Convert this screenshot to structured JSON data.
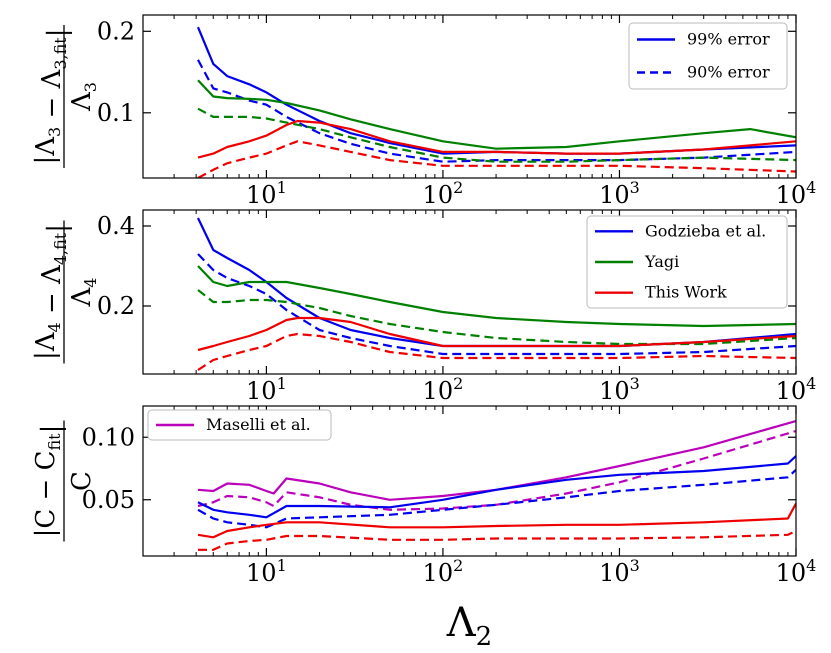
{
  "chart_data": [
    {
      "type": "line",
      "panel": "top",
      "ylabel": "|Λ3 − Λ3,fit| / Λ3",
      "xlabel": "",
      "xscale": "log",
      "xlim": [
        2,
        10000
      ],
      "ylim": [
        0.02,
        0.22
      ],
      "xticks": [
        10,
        100,
        1000,
        10000
      ],
      "xtick_labels": [
        "10^1",
        "10^2",
        "10^3",
        "10^4"
      ],
      "yticks": [
        0.1,
        0.2
      ],
      "ytick_labels": [
        "0.1",
        "0.2"
      ],
      "legend": {
        "placement": "top-right",
        "entries": [
          {
            "label": "99% error",
            "style": "solid",
            "color": "#0000ee"
          },
          {
            "label": "90% error",
            "style": "dashed",
            "color": "#0000ee"
          }
        ]
      },
      "series": [
        {
          "color": "#0000ee",
          "style": "solid",
          "x": [
            4.1,
            5,
            6,
            8,
            10,
            13,
            20,
            30,
            50,
            100,
            200,
            500,
            1000,
            3000,
            10000
          ],
          "y": [
            0.205,
            0.16,
            0.145,
            0.135,
            0.125,
            0.11,
            0.09,
            0.075,
            0.063,
            0.05,
            0.052,
            0.05,
            0.05,
            0.055,
            0.06
          ]
        },
        {
          "color": "#0000ee",
          "style": "dashed",
          "x": [
            4.1,
            5,
            6,
            8,
            10,
            13,
            20,
            30,
            50,
            100,
            200,
            500,
            1000,
            3000,
            10000
          ],
          "y": [
            0.165,
            0.13,
            0.125,
            0.115,
            0.11,
            0.095,
            0.075,
            0.062,
            0.05,
            0.04,
            0.042,
            0.042,
            0.042,
            0.045,
            0.052
          ]
        },
        {
          "color": "#008000",
          "style": "solid",
          "x": [
            4.1,
            5,
            6,
            8,
            10,
            13,
            20,
            30,
            50,
            100,
            200,
            500,
            1000,
            3000,
            5500,
            10000
          ],
          "y": [
            0.14,
            0.12,
            0.118,
            0.117,
            0.116,
            0.112,
            0.103,
            0.092,
            0.08,
            0.065,
            0.056,
            0.058,
            0.065,
            0.075,
            0.08,
            0.07
          ]
        },
        {
          "color": "#008000",
          "style": "dashed",
          "x": [
            4.1,
            5,
            6,
            8,
            10,
            13,
            20,
            30,
            50,
            100,
            200,
            500,
            1000,
            3000,
            10000
          ],
          "y": [
            0.105,
            0.095,
            0.095,
            0.095,
            0.093,
            0.088,
            0.08,
            0.07,
            0.058,
            0.045,
            0.04,
            0.04,
            0.042,
            0.045,
            0.042
          ]
        },
        {
          "color": "#ee0000",
          "style": "solid",
          "x": [
            4.1,
            5,
            6,
            8,
            10,
            13,
            15,
            20,
            30,
            50,
            100,
            200,
            500,
            1000,
            3000,
            10000
          ],
          "y": [
            0.045,
            0.05,
            0.058,
            0.065,
            0.072,
            0.085,
            0.09,
            0.088,
            0.08,
            0.065,
            0.052,
            0.052,
            0.05,
            0.05,
            0.055,
            0.065
          ]
        },
        {
          "color": "#ee0000",
          "style": "dashed",
          "x": [
            4.1,
            5,
            6,
            8,
            10,
            13,
            15,
            20,
            30,
            50,
            100,
            200,
            500,
            1000,
            3000,
            10000
          ],
          "y": [
            0.02,
            0.03,
            0.038,
            0.045,
            0.05,
            0.06,
            0.065,
            0.06,
            0.052,
            0.042,
            0.035,
            0.035,
            0.035,
            0.035,
            0.032,
            0.028
          ]
        }
      ]
    },
    {
      "type": "line",
      "panel": "middle",
      "ylabel": "|Λ4 − Λ4,fit| / Λ4",
      "xlabel": "",
      "xscale": "log",
      "xlim": [
        2,
        10000
      ],
      "ylim": [
        0.03,
        0.44
      ],
      "xticks": [
        10,
        100,
        1000,
        10000
      ],
      "xtick_labels": [
        "10^1",
        "10^2",
        "10^3",
        "10^4"
      ],
      "yticks": [
        0.2,
        0.4
      ],
      "ytick_labels": [
        "0.2",
        "0.4"
      ],
      "legend": {
        "placement": "top-right",
        "entries": [
          {
            "label": "Godzieba et al.",
            "style": "solid",
            "color": "#0000ee"
          },
          {
            "label": "Yagi",
            "style": "solid",
            "color": "#008000"
          },
          {
            "label": "This Work",
            "style": "solid",
            "color": "#ee0000"
          }
        ]
      },
      "series": [
        {
          "color": "#0000ee",
          "style": "solid",
          "x": [
            4.1,
            5,
            6,
            8,
            10,
            13,
            20,
            30,
            50,
            100,
            200,
            500,
            1000,
            3000,
            10000
          ],
          "y": [
            0.42,
            0.34,
            0.32,
            0.29,
            0.26,
            0.22,
            0.17,
            0.14,
            0.12,
            0.1,
            0.1,
            0.1,
            0.1,
            0.11,
            0.13
          ]
        },
        {
          "color": "#0000ee",
          "style": "dashed",
          "x": [
            4.1,
            5,
            6,
            8,
            10,
            13,
            20,
            30,
            50,
            100,
            200,
            500,
            1000,
            3000,
            10000
          ],
          "y": [
            0.33,
            0.29,
            0.27,
            0.25,
            0.23,
            0.19,
            0.14,
            0.12,
            0.1,
            0.08,
            0.08,
            0.08,
            0.08,
            0.085,
            0.1
          ]
        },
        {
          "color": "#008000",
          "style": "solid",
          "x": [
            4.1,
            5,
            6,
            8,
            10,
            13,
            20,
            30,
            50,
            100,
            200,
            500,
            1000,
            3000,
            10000
          ],
          "y": [
            0.3,
            0.26,
            0.25,
            0.26,
            0.26,
            0.26,
            0.245,
            0.23,
            0.21,
            0.185,
            0.17,
            0.16,
            0.155,
            0.15,
            0.155
          ]
        },
        {
          "color": "#008000",
          "style": "dashed",
          "x": [
            4.1,
            5,
            6,
            8,
            10,
            13,
            20,
            30,
            50,
            100,
            200,
            500,
            1000,
            3000,
            10000
          ],
          "y": [
            0.24,
            0.21,
            0.21,
            0.215,
            0.215,
            0.21,
            0.195,
            0.175,
            0.155,
            0.135,
            0.12,
            0.11,
            0.105,
            0.105,
            0.12
          ]
        },
        {
          "color": "#ee0000",
          "style": "solid",
          "x": [
            4.1,
            5,
            6,
            8,
            10,
            13,
            15,
            20,
            30,
            50,
            100,
            200,
            500,
            1000,
            3000,
            10000
          ],
          "y": [
            0.09,
            0.1,
            0.11,
            0.125,
            0.14,
            0.165,
            0.17,
            0.17,
            0.16,
            0.13,
            0.1,
            0.1,
            0.1,
            0.1,
            0.11,
            0.125
          ]
        },
        {
          "color": "#ee0000",
          "style": "dashed",
          "x": [
            4.1,
            5,
            6,
            8,
            10,
            13,
            15,
            20,
            30,
            50,
            100,
            200,
            500,
            1000,
            3000,
            10000
          ],
          "y": [
            0.04,
            0.065,
            0.075,
            0.09,
            0.1,
            0.125,
            0.13,
            0.125,
            0.11,
            0.085,
            0.07,
            0.07,
            0.07,
            0.07,
            0.075,
            0.07
          ]
        }
      ]
    },
    {
      "type": "line",
      "panel": "bottom",
      "ylabel": "|C − C_fit| / C",
      "xlabel": "Λ2",
      "xscale": "log",
      "xlim": [
        2,
        10000
      ],
      "ylim": [
        0.005,
        0.125
      ],
      "xticks": [
        10,
        100,
        1000,
        10000
      ],
      "xtick_labels": [
        "10^1",
        "10^2",
        "10^3",
        "10^4"
      ],
      "yticks": [
        0.05,
        0.1
      ],
      "ytick_labels": [
        "0.05",
        "0.10"
      ],
      "legend": {
        "placement": "top-left",
        "entries": [
          {
            "label": "Maselli et al.",
            "style": "solid",
            "color": "#bb00bb"
          }
        ]
      },
      "series": [
        {
          "color": "#bb00bb",
          "style": "solid",
          "x": [
            4.1,
            5,
            6,
            8,
            10,
            11,
            13,
            20,
            30,
            50,
            100,
            200,
            500,
            1000,
            3000,
            10000
          ],
          "y": [
            0.058,
            0.057,
            0.063,
            0.062,
            0.057,
            0.055,
            0.067,
            0.063,
            0.056,
            0.05,
            0.053,
            0.058,
            0.068,
            0.077,
            0.092,
            0.113
          ]
        },
        {
          "color": "#bb00bb",
          "style": "dashed",
          "x": [
            4.1,
            5,
            6,
            8,
            10,
            11,
            13,
            20,
            30,
            50,
            100,
            200,
            500,
            1000,
            3000,
            10000
          ],
          "y": [
            0.045,
            0.048,
            0.053,
            0.052,
            0.048,
            0.045,
            0.056,
            0.052,
            0.046,
            0.042,
            0.043,
            0.046,
            0.055,
            0.064,
            0.083,
            0.105
          ]
        },
        {
          "color": "#0000ee",
          "style": "solid",
          "x": [
            4.1,
            5,
            6,
            8,
            10,
            13,
            20,
            50,
            100,
            200,
            500,
            1000,
            3000,
            9000,
            10000
          ],
          "y": [
            0.048,
            0.042,
            0.04,
            0.038,
            0.036,
            0.045,
            0.045,
            0.044,
            0.05,
            0.058,
            0.066,
            0.07,
            0.073,
            0.079,
            0.085
          ]
        },
        {
          "color": "#0000ee",
          "style": "dashed",
          "x": [
            4.1,
            5,
            6,
            8,
            10,
            13,
            20,
            50,
            100,
            200,
            500,
            1000,
            3000,
            9000,
            10000
          ],
          "y": [
            0.042,
            0.035,
            0.032,
            0.03,
            0.028,
            0.035,
            0.036,
            0.038,
            0.042,
            0.046,
            0.052,
            0.057,
            0.062,
            0.068,
            0.074
          ]
        },
        {
          "color": "#ee0000",
          "style": "solid",
          "x": [
            4.1,
            5,
            6,
            8,
            10,
            13,
            20,
            50,
            100,
            200,
            500,
            1000,
            3000,
            9000,
            10000
          ],
          "y": [
            0.022,
            0.02,
            0.025,
            0.028,
            0.03,
            0.032,
            0.032,
            0.028,
            0.028,
            0.029,
            0.03,
            0.03,
            0.032,
            0.035,
            0.047
          ]
        },
        {
          "color": "#ee0000",
          "style": "dashed",
          "x": [
            4.1,
            5,
            6,
            8,
            10,
            13,
            20,
            50,
            100,
            200,
            500,
            1000,
            3000,
            9000,
            10000
          ],
          "y": [
            0.01,
            0.01,
            0.015,
            0.017,
            0.018,
            0.021,
            0.021,
            0.018,
            0.018,
            0.019,
            0.019,
            0.019,
            0.02,
            0.022,
            0.025
          ]
        }
      ]
    }
  ]
}
